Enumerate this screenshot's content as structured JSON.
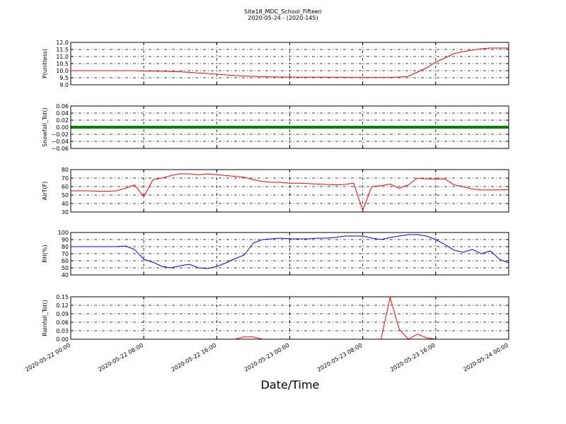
{
  "title": "Site18_MDC_School_Fifteen",
  "subtitle": "2020-05-24 - (2020-145)",
  "xlabel": "Date/Time",
  "chart_data": [
    {
      "type": "line",
      "ylabel": "P(unitless)",
      "grid": true,
      "x": [
        "2020-05-22 00:00",
        "2020-05-22 01:00",
        "2020-05-22 02:00",
        "2020-05-22 03:00",
        "2020-05-22 04:00",
        "2020-05-22 05:00",
        "2020-05-22 06:00",
        "2020-05-22 07:00",
        "2020-05-22 08:00",
        "2020-05-22 09:00",
        "2020-05-22 10:00",
        "2020-05-22 11:00",
        "2020-05-22 12:00",
        "2020-05-22 13:00",
        "2020-05-22 14:00",
        "2020-05-22 15:00",
        "2020-05-22 16:00",
        "2020-05-22 17:00",
        "2020-05-22 18:00",
        "2020-05-22 19:00",
        "2020-05-22 20:00",
        "2020-05-22 21:00",
        "2020-05-22 22:00",
        "2020-05-22 23:00",
        "2020-05-23 00:00",
        "2020-05-23 01:00",
        "2020-05-23 02:00",
        "2020-05-23 03:00",
        "2020-05-23 04:00",
        "2020-05-23 05:00",
        "2020-05-23 06:00",
        "2020-05-23 07:00",
        "2020-05-23 08:00",
        "2020-05-23 09:00",
        "2020-05-23 10:00",
        "2020-05-23 11:00",
        "2020-05-23 12:00",
        "2020-05-23 13:00",
        "2020-05-23 14:00",
        "2020-05-23 15:00",
        "2020-05-23 16:00",
        "2020-05-23 17:00",
        "2020-05-23 18:00",
        "2020-05-23 19:00",
        "2020-05-23 20:00",
        "2020-05-23 21:00",
        "2020-05-23 22:00",
        "2020-05-23 23:00",
        "2020-05-24 00:00"
      ],
      "series": [
        {
          "name": "P(unitless)",
          "color": "#ff0000",
          "values": [
            10.0,
            10.0,
            10.0,
            10.0,
            10.0,
            10.0,
            10.0,
            10.0,
            9.98,
            9.97,
            9.96,
            9.94,
            9.92,
            9.88,
            9.84,
            9.8,
            9.75,
            9.7,
            9.66,
            9.62,
            9.6,
            9.58,
            9.56,
            9.55,
            9.55,
            9.54,
            9.54,
            9.54,
            9.54,
            9.53,
            9.53,
            9.52,
            9.52,
            9.52,
            9.52,
            9.52,
            9.55,
            9.6,
            9.9,
            10.2,
            10.6,
            10.9,
            11.2,
            11.35,
            11.45,
            11.55,
            11.6,
            11.6,
            11.6
          ]
        }
      ],
      "xlim": [
        "2020-05-22 00:00",
        "2020-05-24 00:00"
      ],
      "xticks": [
        "2020-05-22 00:00",
        "2020-05-22 08:00",
        "2020-05-22 16:00",
        "2020-05-23 00:00",
        "2020-05-23 08:00",
        "2020-05-23 16:00",
        "2020-05-24 00:00"
      ],
      "ylim": [
        9,
        12
      ],
      "yticks": [
        {
          "value": 9,
          "label": "9.0"
        },
        {
          "value": 9.5,
          "label": "9.5"
        },
        {
          "value": 10,
          "label": "10.0"
        },
        {
          "value": 10.5,
          "label": "10.5"
        },
        {
          "value": 11,
          "label": "11.0"
        },
        {
          "value": 11.5,
          "label": "11.5"
        },
        {
          "value": 12,
          "label": "12.0"
        }
      ]
    },
    {
      "type": "line",
      "ylabel": "Snowfall_Tot()",
      "grid": true,
      "x": [
        "2020-05-22 00:00",
        "2020-05-22 01:00",
        "2020-05-22 02:00",
        "2020-05-22 03:00",
        "2020-05-22 04:00",
        "2020-05-22 05:00",
        "2020-05-22 06:00",
        "2020-05-22 07:00",
        "2020-05-22 08:00",
        "2020-05-22 09:00",
        "2020-05-22 10:00",
        "2020-05-22 11:00",
        "2020-05-22 12:00",
        "2020-05-22 13:00",
        "2020-05-22 14:00",
        "2020-05-22 15:00",
        "2020-05-22 16:00",
        "2020-05-22 17:00",
        "2020-05-22 18:00",
        "2020-05-22 19:00",
        "2020-05-22 20:00",
        "2020-05-22 21:00",
        "2020-05-22 22:00",
        "2020-05-22 23:00",
        "2020-05-23 00:00",
        "2020-05-23 01:00",
        "2020-05-23 02:00",
        "2020-05-23 03:00",
        "2020-05-23 04:00",
        "2020-05-23 05:00",
        "2020-05-23 06:00",
        "2020-05-23 07:00",
        "2020-05-23 08:00",
        "2020-05-23 09:00",
        "2020-05-23 10:00",
        "2020-05-23 11:00",
        "2020-05-23 12:00",
        "2020-05-23 13:00",
        "2020-05-23 14:00",
        "2020-05-23 15:00",
        "2020-05-23 16:00",
        "2020-05-23 17:00",
        "2020-05-23 18:00",
        "2020-05-23 19:00",
        "2020-05-23 20:00",
        "2020-05-23 21:00",
        "2020-05-23 22:00",
        "2020-05-23 23:00",
        "2020-05-24 00:00"
      ],
      "series": [
        {
          "name": "Snowfall_Tot()",
          "color": "#008000",
          "values": [
            0,
            0,
            0,
            0,
            0,
            0,
            0,
            0,
            0,
            0,
            0,
            0,
            0,
            0,
            0,
            0,
            0,
            0,
            0,
            0,
            0,
            0,
            0,
            0,
            0,
            0,
            0,
            0,
            0,
            0,
            0,
            0,
            0,
            0,
            0,
            0,
            0,
            0,
            0,
            0,
            0,
            0,
            0,
            0,
            0,
            0,
            0,
            0,
            0
          ]
        }
      ],
      "xlim": [
        "2020-05-22 00:00",
        "2020-05-24 00:00"
      ],
      "xticks": [
        "2020-05-22 00:00",
        "2020-05-22 08:00",
        "2020-05-22 16:00",
        "2020-05-23 00:00",
        "2020-05-23 08:00",
        "2020-05-23 16:00",
        "2020-05-24 00:00"
      ],
      "ylim": [
        -0.06,
        0.06
      ],
      "yticks": [
        {
          "value": -0.06,
          "label": "−0.06"
        },
        {
          "value": -0.04,
          "label": "−0.04"
        },
        {
          "value": -0.02,
          "label": "−0.02"
        },
        {
          "value": 0,
          "label": "0.00"
        },
        {
          "value": 0.02,
          "label": "0.02"
        },
        {
          "value": 0.04,
          "label": "0.04"
        },
        {
          "value": 0.06,
          "label": "0.06"
        }
      ]
    },
    {
      "type": "line",
      "ylabel": "AirT(F)",
      "grid": true,
      "x": [
        "2020-05-22 00:00",
        "2020-05-22 01:00",
        "2020-05-22 02:00",
        "2020-05-22 03:00",
        "2020-05-22 04:00",
        "2020-05-22 05:00",
        "2020-05-22 06:00",
        "2020-05-22 07:00",
        "2020-05-22 08:00",
        "2020-05-22 09:00",
        "2020-05-22 10:00",
        "2020-05-22 11:00",
        "2020-05-22 12:00",
        "2020-05-22 13:00",
        "2020-05-22 14:00",
        "2020-05-22 15:00",
        "2020-05-22 16:00",
        "2020-05-22 17:00",
        "2020-05-22 18:00",
        "2020-05-22 19:00",
        "2020-05-22 20:00",
        "2020-05-22 21:00",
        "2020-05-22 22:00",
        "2020-05-22 23:00",
        "2020-05-23 00:00",
        "2020-05-23 01:00",
        "2020-05-23 02:00",
        "2020-05-23 03:00",
        "2020-05-23 04:00",
        "2020-05-23 05:00",
        "2020-05-23 06:00",
        "2020-05-23 07:00",
        "2020-05-23 08:00",
        "2020-05-23 09:00",
        "2020-05-23 10:00",
        "2020-05-23 11:00",
        "2020-05-23 12:00",
        "2020-05-23 13:00",
        "2020-05-23 14:00",
        "2020-05-23 15:00",
        "2020-05-23 16:00",
        "2020-05-23 17:00",
        "2020-05-23 18:00",
        "2020-05-23 19:00",
        "2020-05-23 20:00",
        "2020-05-23 21:00",
        "2020-05-23 22:00",
        "2020-05-23 23:00",
        "2020-05-24 00:00"
      ],
      "series": [
        {
          "name": "AirT(F)",
          "color": "#ff0000",
          "values": [
            55,
            55,
            55,
            54.5,
            54.5,
            55,
            58,
            62,
            48,
            68,
            70,
            73,
            75,
            75,
            74,
            75,
            74,
            73,
            72,
            71,
            68,
            66,
            65,
            65,
            64,
            64,
            63.5,
            63,
            62.5,
            62,
            62.5,
            64,
            32,
            60,
            61,
            63,
            58,
            62,
            70,
            69,
            69,
            69,
            62,
            60,
            57,
            56,
            56,
            56,
            56.5
          ]
        }
      ],
      "xlim": [
        "2020-05-22 00:00",
        "2020-05-24 00:00"
      ],
      "xticks": [
        "2020-05-22 00:00",
        "2020-05-22 08:00",
        "2020-05-22 16:00",
        "2020-05-23 00:00",
        "2020-05-23 08:00",
        "2020-05-23 16:00",
        "2020-05-24 00:00"
      ],
      "ylim": [
        30,
        80
      ],
      "yticks": [
        30,
        40,
        50,
        60,
        70,
        80
      ]
    },
    {
      "type": "line",
      "ylabel": "RH(%)",
      "grid": true,
      "x": [
        "2020-05-22 00:00",
        "2020-05-22 01:00",
        "2020-05-22 02:00",
        "2020-05-22 03:00",
        "2020-05-22 04:00",
        "2020-05-22 05:00",
        "2020-05-22 06:00",
        "2020-05-22 07:00",
        "2020-05-22 08:00",
        "2020-05-22 09:00",
        "2020-05-22 10:00",
        "2020-05-22 11:00",
        "2020-05-22 12:00",
        "2020-05-22 13:00",
        "2020-05-22 14:00",
        "2020-05-22 15:00",
        "2020-05-22 16:00",
        "2020-05-22 17:00",
        "2020-05-22 18:00",
        "2020-05-22 19:00",
        "2020-05-22 20:00",
        "2020-05-22 21:00",
        "2020-05-22 22:00",
        "2020-05-22 23:00",
        "2020-05-23 00:00",
        "2020-05-23 01:00",
        "2020-05-23 02:00",
        "2020-05-23 03:00",
        "2020-05-23 04:00",
        "2020-05-23 05:00",
        "2020-05-23 06:00",
        "2020-05-23 07:00",
        "2020-05-23 08:00",
        "2020-05-23 09:00",
        "2020-05-23 10:00",
        "2020-05-23 11:00",
        "2020-05-23 12:00",
        "2020-05-23 13:00",
        "2020-05-23 14:00",
        "2020-05-23 15:00",
        "2020-05-23 16:00",
        "2020-05-23 17:00",
        "2020-05-23 18:00",
        "2020-05-23 19:00",
        "2020-05-23 20:00",
        "2020-05-23 21:00",
        "2020-05-23 22:00",
        "2020-05-23 23:00",
        "2020-05-24 00:00"
      ],
      "series": [
        {
          "name": "RH(%)",
          "color": "#0000ff",
          "values": [
            80,
            80,
            80,
            80,
            80,
            80,
            81,
            76,
            62,
            58,
            52,
            50,
            53,
            55,
            50,
            49,
            52,
            57,
            63,
            68,
            85,
            90,
            91,
            92,
            91,
            91,
            91,
            92,
            92,
            93,
            95,
            95,
            95,
            92,
            90,
            93,
            95,
            97,
            97,
            95,
            90,
            83,
            75,
            72,
            76,
            70,
            74,
            62,
            57
          ]
        }
      ],
      "xlim": [
        "2020-05-22 00:00",
        "2020-05-24 00:00"
      ],
      "xticks": [
        "2020-05-22 00:00",
        "2020-05-22 08:00",
        "2020-05-22 16:00",
        "2020-05-23 00:00",
        "2020-05-23 08:00",
        "2020-05-23 16:00",
        "2020-05-24 00:00"
      ],
      "ylim": [
        40,
        100
      ],
      "yticks": [
        40,
        50,
        60,
        70,
        80,
        90,
        100
      ]
    },
    {
      "type": "line",
      "ylabel": "Rainfall_Tot()",
      "grid": true,
      "x": [
        "2020-05-22 00:00",
        "2020-05-22 01:00",
        "2020-05-22 02:00",
        "2020-05-22 03:00",
        "2020-05-22 04:00",
        "2020-05-22 05:00",
        "2020-05-22 06:00",
        "2020-05-22 07:00",
        "2020-05-22 08:00",
        "2020-05-22 09:00",
        "2020-05-22 10:00",
        "2020-05-22 11:00",
        "2020-05-22 12:00",
        "2020-05-22 13:00",
        "2020-05-22 14:00",
        "2020-05-22 15:00",
        "2020-05-22 16:00",
        "2020-05-22 17:00",
        "2020-05-22 18:00",
        "2020-05-22 19:00",
        "2020-05-22 20:00",
        "2020-05-22 21:00",
        "2020-05-22 22:00",
        "2020-05-22 23:00",
        "2020-05-23 00:00",
        "2020-05-23 01:00",
        "2020-05-23 02:00",
        "2020-05-23 03:00",
        "2020-05-23 04:00",
        "2020-05-23 05:00",
        "2020-05-23 06:00",
        "2020-05-23 07:00",
        "2020-05-23 08:00",
        "2020-05-23 09:00",
        "2020-05-23 10:00",
        "2020-05-23 11:00",
        "2020-05-23 12:00",
        "2020-05-23 13:00",
        "2020-05-23 14:00",
        "2020-05-23 15:00",
        "2020-05-23 16:00",
        "2020-05-23 17:00",
        "2020-05-23 18:00",
        "2020-05-23 19:00",
        "2020-05-23 20:00",
        "2020-05-23 21:00",
        "2020-05-23 22:00",
        "2020-05-23 23:00",
        "2020-05-24 00:00"
      ],
      "series": [
        {
          "name": "Rainfall_Tot()",
          "color": "#ff0000",
          "values": [
            0,
            0,
            0,
            0,
            0,
            0,
            0,
            0,
            0,
            0,
            0,
            0,
            0,
            0,
            0,
            0,
            0,
            0,
            0,
            0.008,
            0.008,
            0,
            0,
            0,
            0,
            0,
            0,
            0,
            0,
            0,
            0,
            0,
            0,
            0,
            0,
            0.148,
            0.035,
            0,
            0.018,
            0.005,
            0,
            0,
            0,
            0,
            0,
            0,
            0,
            0,
            0
          ]
        }
      ],
      "xlim": [
        "2020-05-22 00:00",
        "2020-05-24 00:00"
      ],
      "xticks": [
        {
          "value": "2020-05-22 00:00",
          "label": "2020-05-22 00:00"
        },
        {
          "value": "2020-05-22 08:00",
          "label": "2020-05-22 08:00"
        },
        {
          "value": "2020-05-22 16:00",
          "label": "2020-05-22 16:00"
        },
        {
          "value": "2020-05-23 00:00",
          "label": "2020-05-23 00:00"
        },
        {
          "value": "2020-05-23 08:00",
          "label": "2020-05-23 08:00"
        },
        {
          "value": "2020-05-23 16:00",
          "label": "2020-05-23 16:00"
        },
        {
          "value": "2020-05-24 00:00",
          "label": "2020-05-24 00:00"
        }
      ],
      "ylim": [
        0,
        0.15
      ],
      "yticks": [
        {
          "value": 0,
          "label": "0.00"
        },
        {
          "value": 0.03,
          "label": "0.03"
        },
        {
          "value": 0.06,
          "label": "0.06"
        },
        {
          "value": 0.09,
          "label": "0.09"
        },
        {
          "value": 0.12,
          "label": "0.12"
        },
        {
          "value": 0.15,
          "label": "0.15"
        }
      ]
    }
  ]
}
